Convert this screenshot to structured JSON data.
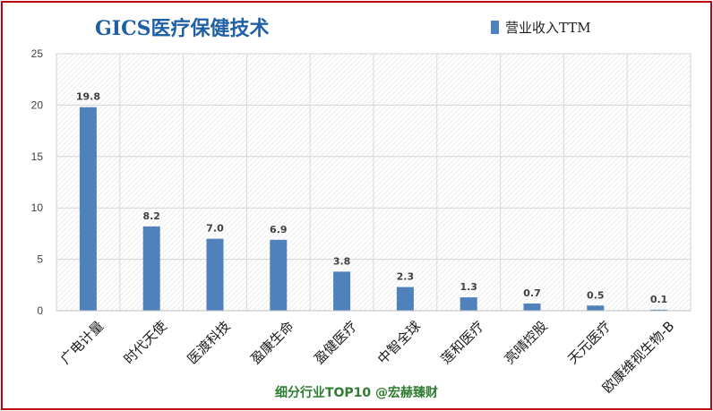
{
  "chart_data": {
    "type": "bar",
    "title": "GICS医疗保健技术",
    "categories": [
      "广电计量",
      "时代天使",
      "医渡科技",
      "盈康生命",
      "盈健医疗",
      "中智全球",
      "莲和医疗",
      "亮晴控股",
      "天元医疗",
      "欧康维视生物-B"
    ],
    "series": [
      {
        "name": "营业收入TTM",
        "values": [
          19.8,
          8.2,
          7.0,
          6.9,
          3.8,
          2.3,
          1.3,
          0.7,
          0.5,
          0.1
        ]
      }
    ],
    "data_labels": [
      "19.8",
      "8.2",
      "7.0",
      "6.9",
      "3.8",
      "2.3",
      "1.3",
      "0.7",
      "0.5",
      "0.1"
    ],
    "y_ticks": [
      "0",
      "5",
      "10",
      "15",
      "20",
      "25"
    ],
    "ylim": [
      0,
      25
    ],
    "grid": true,
    "legend_position": "top-right",
    "footer": "细分行业TOP10 @宏赫臻财"
  },
  "colors": {
    "bar": "#4f81bd",
    "title": "#1f5fa6",
    "border": "#c0000c",
    "footer": "#2e7d32"
  }
}
